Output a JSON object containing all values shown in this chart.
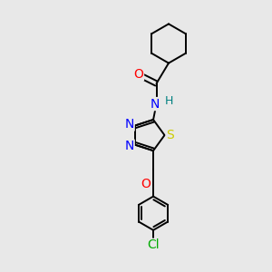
{
  "background_color": "#e8e8e8",
  "bond_color": "#000000",
  "atom_colors": {
    "O": "#ff0000",
    "N": "#0000ff",
    "S": "#cccc00",
    "Cl": "#00aa00",
    "H": "#008080",
    "C": "#000000"
  },
  "lw": 1.4,
  "xlim": [
    0,
    10
  ],
  "ylim": [
    0,
    10
  ]
}
